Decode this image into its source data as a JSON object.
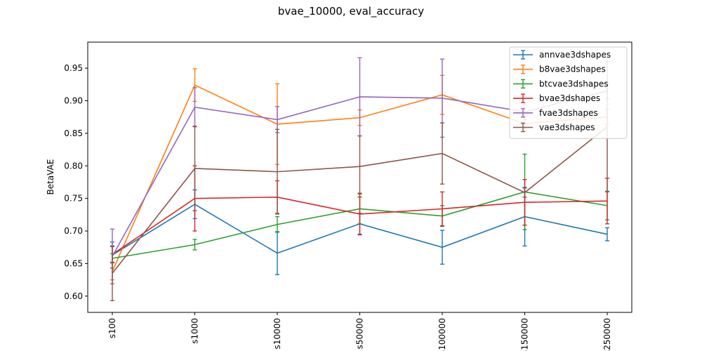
{
  "chart_data": {
    "type": "line",
    "title": "bvae_10000, eval_accuracy",
    "xlabel": "",
    "ylabel": "BetaVAE",
    "categories": [
      "s100",
      "s1000",
      "s10000",
      "s50000",
      "s100000",
      "s150000",
      "s250000"
    ],
    "ylim": [
      0.575,
      0.99
    ],
    "yticks": [
      0.6,
      0.65,
      0.7,
      0.75,
      0.8,
      0.85,
      0.9,
      0.95
    ],
    "grid": false,
    "legend_position": "top-right",
    "series": [
      {
        "name": "annvae3dshapes",
        "color": "#1f77b4",
        "values": [
          0.663,
          0.741,
          0.666,
          0.711,
          0.675,
          0.722,
          0.695
        ],
        "errors": [
          0.02,
          0.022,
          0.033,
          0.016,
          0.026,
          0.045,
          0.01
        ]
      },
      {
        "name": "b8vae3dshapes",
        "color": "#ff7f0e",
        "values": [
          0.638,
          0.924,
          0.864,
          0.874,
          0.909,
          0.865,
          0.875
        ],
        "errors": [
          0.013,
          0.025,
          0.062,
          0.012,
          0.03,
          0.012,
          0.012
        ]
      },
      {
        "name": "btcvae3dshapes",
        "color": "#2ca02c",
        "values": [
          0.658,
          0.679,
          0.71,
          0.734,
          0.723,
          0.76,
          0.739
        ],
        "errors": [
          0.007,
          0.008,
          0.012,
          0.023,
          0.016,
          0.058,
          0.022
        ]
      },
      {
        "name": "bvae3dshapes",
        "color": "#d62728",
        "values": [
          0.664,
          0.75,
          0.752,
          0.726,
          0.734,
          0.744,
          0.746
        ],
        "errors": [
          0.012,
          0.05,
          0.025,
          0.032,
          0.026,
          0.035,
          0.035
        ]
      },
      {
        "name": "fvae3dshapes",
        "color": "#9467bd",
        "values": [
          0.661,
          0.89,
          0.871,
          0.906,
          0.904,
          0.883,
          0.915
        ],
        "errors": [
          0.042,
          0.03,
          0.02,
          0.06,
          0.06,
          0.012,
          0.012
        ]
      },
      {
        "name": "vae3dshapes",
        "color": "#8c564b",
        "values": [
          0.635,
          0.796,
          0.791,
          0.799,
          0.819,
          0.759,
          0.86
        ],
        "errors": [
          0.042,
          0.065,
          0.065,
          0.047,
          0.047,
          0.007,
          0.1
        ]
      }
    ]
  }
}
